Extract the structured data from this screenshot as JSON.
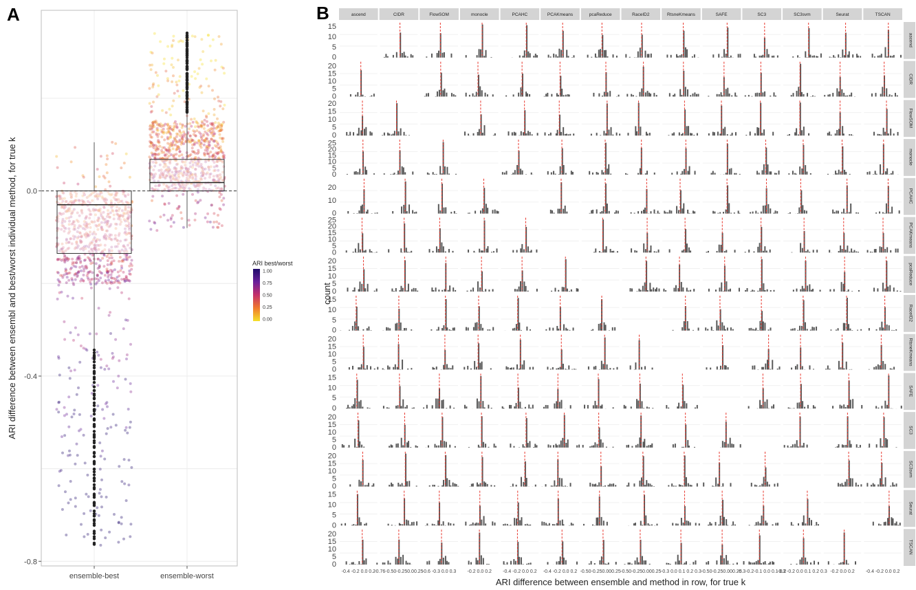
{
  "panels": {
    "a_letter": "A",
    "b_letter": "B"
  },
  "chart_data": [
    {
      "type": "scatter",
      "variant": "jittered points with boxplot",
      "panel": "A",
      "ylabel": "ARI difference between ensembl and best/worst individual method, for true k",
      "xlabel": "",
      "categories": [
        "ensemble-best",
        "ensemble-worst"
      ],
      "ylim": [
        -0.81,
        0.39
      ],
      "y_ticks": [
        0.0,
        -0.4,
        -0.8
      ],
      "y_tick_labels": [
        "0.0",
        "-0.4",
        "-0.8"
      ],
      "reference_line_y": 0.0,
      "grid": true,
      "boxplots": [
        {
          "category": "ensemble-best",
          "q1": -0.135,
          "median": -0.03,
          "q3": 0.0,
          "whisker_low": -0.34,
          "whisker_high": 0.105
        },
        {
          "category": "ensemble-worst",
          "q1": 0.0,
          "median": 0.018,
          "q3": 0.068,
          "whisker_low": -0.08,
          "whisker_high": 0.17
        }
      ],
      "point_spread": [
        {
          "category": "ensemble-best",
          "y_min": -0.77,
          "y_max": 0.11,
          "dense_region": [
            -0.2,
            0.0
          ]
        },
        {
          "category": "ensemble-worst",
          "y_min": -0.09,
          "y_max": 0.34,
          "dense_region": [
            0.0,
            0.15
          ]
        }
      ],
      "legend": {
        "title": "ARI best/worst",
        "placement": "right",
        "type": "colorbar",
        "range": [
          0.0,
          1.0
        ],
        "tick_labels": [
          "1.00",
          "0.75",
          "0.50",
          "0.25",
          "0.00"
        ],
        "colors": [
          "#1f0c6b",
          "#6a1f9a",
          "#c4306a",
          "#f07a2c",
          "#f5e02a"
        ]
      }
    },
    {
      "type": "bar",
      "variant": "faceted histograms",
      "panel": "B",
      "ylabel": "count",
      "xlabel": "ARI difference between ensemble and method in row, for true k",
      "column_facets": [
        "ascend",
        "CIDR",
        "FlowSOM",
        "monocle",
        "PCAHC",
        "PCAKmeans",
        "pcaReduce",
        "RaceID2",
        "RtsneKmeans",
        "SAFE",
        "SC3",
        "SC3svm",
        "Seurat",
        "TSCAN"
      ],
      "row_facets": [
        "ascend",
        "CIDR",
        "FlowSOM",
        "monocle",
        "PCAHC",
        "PCAKmeans",
        "pcaReduce",
        "RaceID2",
        "RtsneKmeans",
        "SAFE",
        "SC3",
        "SC3svm",
        "Seurat",
        "TSCAN"
      ],
      "row_y_ticks": [
        [
          "0",
          "5",
          "10",
          "15"
        ],
        [
          "0",
          "5",
          "10",
          "15",
          "20"
        ],
        [
          "0",
          "5",
          "10",
          "15",
          "20"
        ],
        [
          "0",
          "5",
          "10",
          "15",
          "20",
          "25"
        ],
        [
          "0",
          "10",
          "20"
        ],
        [
          "0",
          "5",
          "10",
          "15",
          "20",
          "25"
        ],
        [
          "0",
          "5",
          "10",
          "15",
          "20"
        ],
        [
          "0",
          "5",
          "10",
          "15"
        ],
        [
          "0",
          "5",
          "10",
          "15",
          "20"
        ],
        [
          "0",
          "5",
          "10",
          "15"
        ],
        [
          "0",
          "5",
          "10",
          "15",
          "20"
        ],
        [
          "0",
          "5",
          "10",
          "15",
          "20"
        ],
        [
          "0",
          "5",
          "10",
          "15"
        ],
        [
          "0",
          "5",
          "10",
          "15",
          "20"
        ]
      ],
      "row_ymax": [
        17,
        23,
        22,
        28,
        27,
        27,
        23,
        17,
        23,
        17,
        23,
        23,
        17,
        23
      ],
      "column_x_ticks": [
        "-0.4 -0.2 0.0 0.2",
        "-0.76-0.50-0.250.00.25",
        "-0.6 -0.3 0.0 0.3",
        "-0.2 0.0 0.2",
        "-0.4 -0.2 0.0 0.2",
        "-0.4 -0.2 0.0 0.2",
        "-0.50-0.250.000.25",
        "-0.50-0.250.000.25",
        "-0.3 0.0 0.1 0.2 0.3",
        "-0.50-0.250.000.25",
        "-0.3-0.2-0.1 0.0 0.1 0.2",
        "-0.3 -0.2 0.0 0.1 0.2 0.3",
        "-0.2 0.0 0.2",
        "-0.4 -0.2 0.0 0.2"
      ],
      "reference_line_x": 0.0,
      "reference_line_color": "#e8352b",
      "bar_color": "#595959",
      "diagonal_empty": true,
      "grid": true
    }
  ]
}
